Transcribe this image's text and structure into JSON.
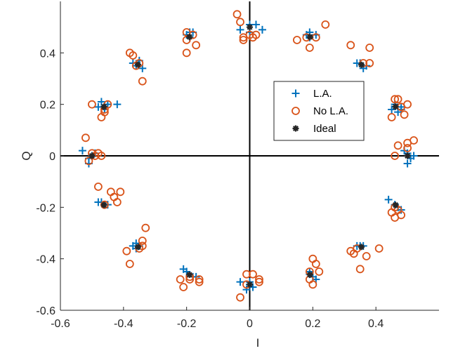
{
  "chart_data": {
    "type": "scatter",
    "title": "",
    "xlabel": "I",
    "ylabel": "Q",
    "xlim": [
      -0.6,
      0.6
    ],
    "ylim": [
      -0.6,
      0.6
    ],
    "xticks": [
      -0.6,
      -0.4,
      -0.2,
      0,
      0.2,
      0.4
    ],
    "yticks": [
      -0.6,
      -0.4,
      -0.2,
      0,
      0.2,
      0.4
    ],
    "xtick_labels": [
      "-0.6",
      "-0.4",
      "-0.2",
      "0",
      "0.2",
      "0.4"
    ],
    "ytick_labels": [
      "-0.6",
      "-0.4",
      "-0.2",
      "0",
      "0.2",
      "0.4"
    ],
    "grid": false,
    "zero_lines": true,
    "legend_position": "right-center",
    "series": [
      {
        "name": "L.A.",
        "marker": "plus",
        "color": "#0072BD",
        "points": [
          [
            0.0,
            0.51
          ],
          [
            0.02,
            0.51
          ],
          [
            -0.03,
            0.49
          ],
          [
            0.04,
            0.49
          ],
          [
            0.0,
            0.48
          ],
          [
            0.19,
            0.48
          ],
          [
            0.21,
            0.47
          ],
          [
            0.19,
            0.46
          ],
          [
            0.18,
            0.47
          ],
          [
            0.34,
            0.36
          ],
          [
            0.36,
            0.34
          ],
          [
            0.35,
            0.36
          ],
          [
            0.37,
            0.35
          ],
          [
            0.45,
            0.18
          ],
          [
            0.46,
            0.2
          ],
          [
            0.48,
            0.18
          ],
          [
            0.47,
            0.17
          ],
          [
            0.48,
            0.19
          ],
          [
            0.52,
            0.0
          ],
          [
            0.5,
            -0.03
          ],
          [
            0.49,
            0.02
          ],
          [
            0.5,
            0.01
          ],
          [
            0.51,
            -0.01
          ],
          [
            0.44,
            -0.17
          ],
          [
            0.46,
            -0.19
          ],
          [
            0.47,
            -0.2
          ],
          [
            0.48,
            -0.21
          ],
          [
            0.34,
            -0.35
          ],
          [
            0.35,
            -0.35
          ],
          [
            0.36,
            -0.35
          ],
          [
            0.19,
            -0.45
          ],
          [
            0.21,
            -0.48
          ],
          [
            0.2,
            -0.47
          ],
          [
            0.19,
            -0.46
          ],
          [
            -0.03,
            -0.49
          ],
          [
            0.0,
            -0.5
          ],
          [
            -0.01,
            -0.52
          ],
          [
            0.01,
            -0.51
          ],
          [
            0.0,
            -0.49
          ],
          [
            -0.18,
            -0.47
          ],
          [
            -0.2,
            -0.45
          ],
          [
            -0.21,
            -0.44
          ],
          [
            -0.17,
            -0.47
          ],
          [
            -0.36,
            -0.34
          ],
          [
            -0.37,
            -0.35
          ],
          [
            -0.35,
            -0.35
          ],
          [
            -0.36,
            -0.36
          ],
          [
            -0.47,
            -0.18
          ],
          [
            -0.46,
            -0.19
          ],
          [
            -0.45,
            -0.19
          ],
          [
            -0.48,
            -0.18
          ],
          [
            -0.53,
            0.02
          ],
          [
            -0.51,
            -0.01
          ],
          [
            -0.51,
            -0.03
          ],
          [
            -0.5,
            0.0
          ],
          [
            -0.49,
            0.01
          ],
          [
            -0.47,
            0.21
          ],
          [
            -0.45,
            0.2
          ],
          [
            -0.42,
            0.2
          ],
          [
            -0.48,
            0.19
          ],
          [
            -0.46,
            0.18
          ],
          [
            -0.35,
            0.37
          ],
          [
            -0.34,
            0.34
          ],
          [
            -0.36,
            0.35
          ],
          [
            -0.37,
            0.36
          ],
          [
            -0.19,
            0.48
          ],
          [
            -0.19,
            0.46
          ],
          [
            -0.2,
            0.47
          ],
          [
            -0.18,
            0.48
          ]
        ]
      },
      {
        "name": "No L.A.",
        "marker": "circle",
        "color": "#D95319",
        "points": [
          [
            -0.04,
            0.55
          ],
          [
            -0.03,
            0.52
          ],
          [
            0.0,
            0.47
          ],
          [
            0.01,
            0.46
          ],
          [
            -0.02,
            0.46
          ],
          [
            -0.02,
            0.45
          ],
          [
            0.02,
            0.47
          ],
          [
            0.18,
            0.46
          ],
          [
            0.19,
            0.42
          ],
          [
            0.21,
            0.46
          ],
          [
            0.24,
            0.51
          ],
          [
            0.15,
            0.45
          ],
          [
            0.32,
            0.43
          ],
          [
            0.38,
            0.42
          ],
          [
            0.38,
            0.36
          ],
          [
            0.36,
            0.36
          ],
          [
            0.46,
            0.22
          ],
          [
            0.47,
            0.22
          ],
          [
            0.5,
            0.2
          ],
          [
            0.45,
            0.15
          ],
          [
            0.49,
            0.16
          ],
          [
            0.48,
            0.19
          ],
          [
            0.5,
            0.05
          ],
          [
            0.52,
            0.06
          ],
          [
            0.5,
            0.03
          ],
          [
            0.47,
            0.04
          ],
          [
            0.46,
            0.0
          ],
          [
            0.46,
            -0.2
          ],
          [
            0.46,
            -0.24
          ],
          [
            0.48,
            -0.23
          ],
          [
            0.47,
            -0.21
          ],
          [
            0.45,
            -0.22
          ],
          [
            0.33,
            -0.38
          ],
          [
            0.32,
            -0.37
          ],
          [
            0.34,
            -0.36
          ],
          [
            0.37,
            -0.39
          ],
          [
            0.35,
            -0.44
          ],
          [
            0.41,
            -0.36
          ],
          [
            0.19,
            -0.48
          ],
          [
            0.2,
            -0.5
          ],
          [
            0.19,
            -0.45
          ],
          [
            0.21,
            -0.42
          ],
          [
            0.22,
            -0.45
          ],
          [
            0.2,
            -0.4
          ],
          [
            -0.01,
            -0.46
          ],
          [
            0.01,
            -0.46
          ],
          [
            -0.01,
            -0.5
          ],
          [
            0.03,
            -0.48
          ],
          [
            -0.03,
            -0.55
          ],
          [
            0.03,
            -0.49
          ],
          [
            -0.16,
            -0.48
          ],
          [
            -0.16,
            -0.49
          ],
          [
            -0.19,
            -0.48
          ],
          [
            -0.21,
            -0.51
          ],
          [
            -0.22,
            -0.48
          ],
          [
            -0.19,
            -0.47
          ],
          [
            -0.33,
            -0.28
          ],
          [
            -0.34,
            -0.33
          ],
          [
            -0.34,
            -0.35
          ],
          [
            -0.39,
            -0.37
          ],
          [
            -0.38,
            -0.42
          ],
          [
            -0.35,
            -0.36
          ],
          [
            -0.41,
            -0.14
          ],
          [
            -0.43,
            -0.16
          ],
          [
            -0.44,
            -0.14
          ],
          [
            -0.42,
            -0.18
          ],
          [
            -0.46,
            -0.19
          ],
          [
            -0.48,
            -0.12
          ],
          [
            -0.52,
            0.07
          ],
          [
            -0.5,
            0.01
          ],
          [
            -0.49,
            0.0
          ],
          [
            -0.51,
            -0.02
          ],
          [
            -0.48,
            0.01
          ],
          [
            -0.47,
            0.0
          ],
          [
            -0.5,
            0.2
          ],
          [
            -0.46,
            0.18
          ],
          [
            -0.46,
            0.17
          ],
          [
            -0.47,
            0.15
          ],
          [
            -0.45,
            0.2
          ],
          [
            -0.35,
            0.36
          ],
          [
            -0.36,
            0.35
          ],
          [
            -0.38,
            0.4
          ],
          [
            -0.37,
            0.39
          ],
          [
            -0.34,
            0.29
          ],
          [
            -0.2,
            0.48
          ],
          [
            -0.2,
            0.45
          ],
          [
            -0.17,
            0.43
          ],
          [
            -0.18,
            0.47
          ],
          [
            -0.2,
            0.4
          ]
        ]
      },
      {
        "name": "Ideal",
        "marker": "asterisk",
        "color": "#262626",
        "points": [
          [
            0.0,
            0.5
          ],
          [
            0.191,
            0.462
          ],
          [
            0.354,
            0.354
          ],
          [
            0.462,
            0.191
          ],
          [
            0.5,
            0.0
          ],
          [
            0.462,
            -0.191
          ],
          [
            0.354,
            -0.354
          ],
          [
            0.191,
            -0.462
          ],
          [
            0.0,
            -0.5
          ],
          [
            -0.191,
            -0.462
          ],
          [
            -0.354,
            -0.354
          ],
          [
            -0.462,
            -0.191
          ],
          [
            -0.5,
            0.0
          ],
          [
            -0.462,
            0.191
          ],
          [
            -0.354,
            0.354
          ],
          [
            -0.191,
            0.462
          ]
        ]
      }
    ]
  }
}
